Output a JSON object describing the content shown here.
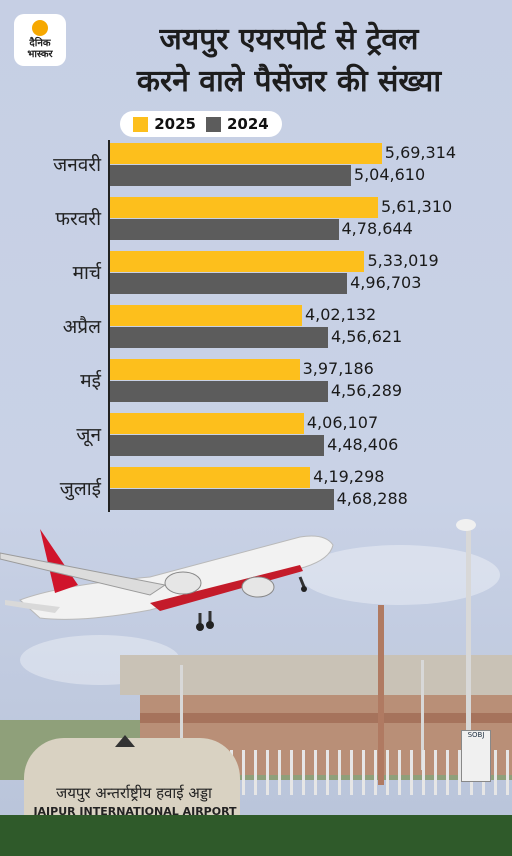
{
  "brand": {
    "line1": "दैनिक",
    "line2": "भास्कर"
  },
  "title": {
    "line1": "जयपुर एयरपोर्ट से ट्रेवल",
    "line2": "करने वाले पैसेंजर की संख्या"
  },
  "colors": {
    "series_2025": "#fdbf1c",
    "series_2024": "#5c5c5c",
    "background": "#c6cfe4"
  },
  "chart_data": {
    "type": "bar",
    "orientation": "horizontal",
    "categories": [
      "जनवरी",
      "फरवरी",
      "मार्च",
      "अप्रैल",
      "मई",
      "जून",
      "जुलाई"
    ],
    "series": [
      {
        "name": "2025",
        "values": [
          569314,
          561310,
          533019,
          402132,
          397186,
          406107,
          419298
        ],
        "labels": [
          "5,69,314",
          "5,61,310",
          "5,33,019",
          "4,02,132",
          "3,97,186",
          "4,06,107",
          "4,19,298"
        ]
      },
      {
        "name": "2024",
        "values": [
          504610,
          478644,
          496703,
          456621,
          456289,
          448406,
          468288
        ],
        "labels": [
          "5,04,610",
          "4,78,644",
          "4,96,703",
          "4,56,621",
          "4,56,289",
          "4,48,406",
          "4,68,288"
        ]
      }
    ],
    "xlim": [
      0,
      620000
    ],
    "legend_position": "top",
    "grid": false
  },
  "illustration": {
    "airport_sign_hindi": "जयपुर अन्तर्राष्ट्रीय हवाई अड्डा",
    "airport_sign_english": "JAIPUR INTERNATIONAL AIRPORT",
    "board_text": "SOBJ"
  }
}
